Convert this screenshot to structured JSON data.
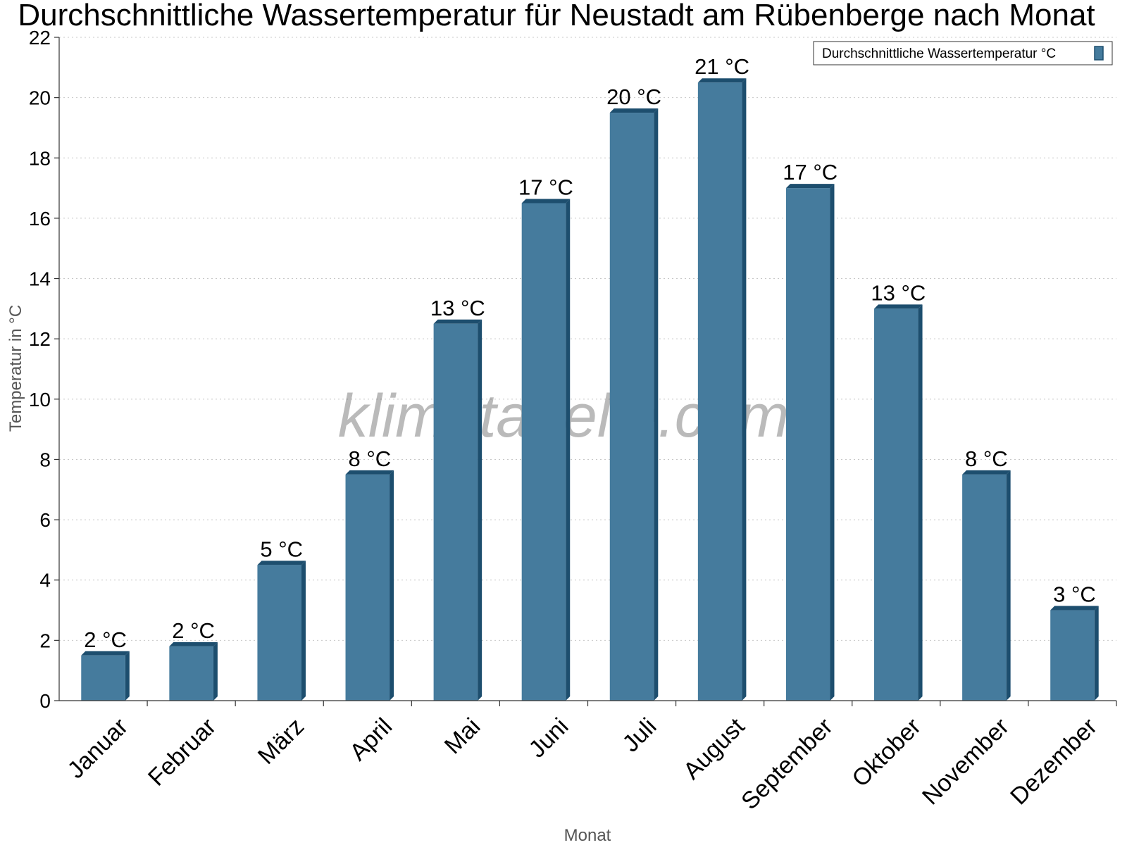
{
  "chart_data": {
    "type": "bar",
    "title": "Durchschnittliche Wassertemperatur für Neustadt am Rübenberge nach Monat",
    "xlabel": "Monat",
    "ylabel": "Temperatur in °C",
    "categories": [
      "Januar",
      "Februar",
      "März",
      "April",
      "Mai",
      "Juni",
      "Juli",
      "August",
      "September",
      "Oktober",
      "November",
      "Dezember"
    ],
    "series": [
      {
        "name": "Durchschnittliche Wassertemperatur °C",
        "values": [
          1.5,
          1.8,
          4.5,
          7.5,
          12.5,
          16.5,
          19.5,
          20.5,
          17.0,
          13.0,
          7.5,
          3.0
        ],
        "labels": [
          "2 °C",
          "2 °C",
          "5 °C",
          "8 °C",
          "13 °C",
          "17 °C",
          "20 °C",
          "21 °C",
          "17 °C",
          "13 °C",
          "8 °C",
          "3 °C"
        ],
        "color": "#457b9d"
      }
    ],
    "ylim": [
      0,
      22
    ],
    "yticks": [
      0,
      2,
      4,
      6,
      8,
      10,
      12,
      14,
      16,
      18,
      20,
      22
    ],
    "grid": true,
    "legend_position": "top-right",
    "colors": {
      "bar": "#457b9d",
      "bar_side": "#1d4e6e",
      "bar_top": "#1d4e6e"
    }
  },
  "watermark": "klimatabelle.com"
}
